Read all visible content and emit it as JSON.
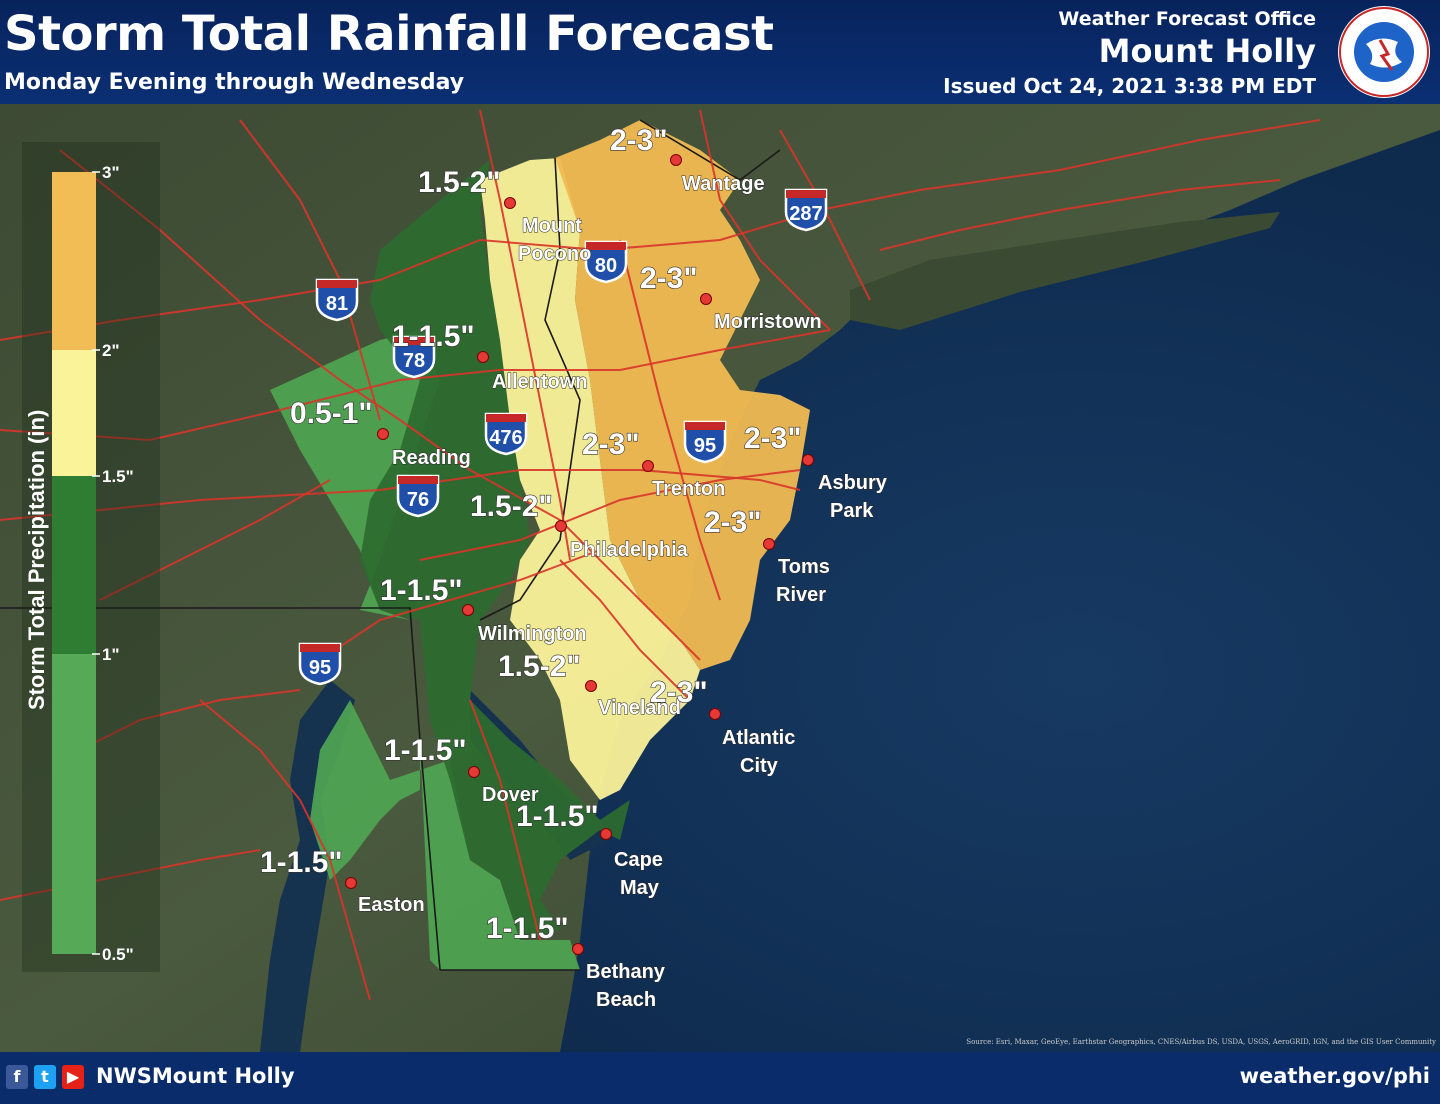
{
  "header": {
    "title": "Storm Total Rainfall Forecast",
    "subtitle": "Monday Evening through Wednesday",
    "office_line1": "Weather Forecast Office",
    "office_line2": "Mount Holly",
    "issued": "Issued Oct 24, 2021 3:38 PM EDT",
    "logo_text": "NATIONAL WEATHER SERVICE"
  },
  "legend": {
    "title": "Storm Total Precipitation (in)",
    "ticks": [
      "3\"",
      "2\"",
      "1.5\"",
      "1\"",
      "0.5\""
    ],
    "bins": [
      {
        "range": "2-3\"",
        "color": "#f2bd54"
      },
      {
        "range": "1.5-2\"",
        "color": "#fbf39a"
      },
      {
        "range": "1-1.5\"",
        "color": "#2e7d32"
      },
      {
        "range": "0.5-1\"",
        "color": "#55a957"
      }
    ]
  },
  "rainfall_labels": [
    "2-3\"",
    "1.5-2\"",
    "2-3\"",
    "1-1.5\"",
    "0.5-1\"",
    "2-3\"",
    "2-3\"",
    "1.5-2\"",
    "2-3\"",
    "1-1.5\"",
    "1.5-2\"",
    "2-3\"",
    "1-1.5\"",
    "1-1.5\"",
    "1-1.5\"",
    "1-1.5\""
  ],
  "cities": [
    "Wantage",
    "Mount",
    "Pocono",
    "Morristown",
    "Allentown",
    "Reading",
    "Trenton",
    "Asbury",
    "Park",
    "Philadelphia",
    "Toms",
    "River",
    "Wilmington",
    "Vineland",
    "Atlantic",
    "City",
    "Dover",
    "Cape",
    "May",
    "Easton",
    "Bethany",
    "Beach"
  ],
  "highways": [
    "287",
    "80",
    "81",
    "78",
    "476",
    "95",
    "76",
    "95"
  ],
  "footer": {
    "handle": "NWSMount Holly",
    "website": "weather.gov/phi",
    "credit": "Source: Esri, Maxar, GeoEye, Earthstar Geographics, CNES/Airbus DS, USDA, USGS, AeroGRID, IGN, and the GIS User Community"
  }
}
